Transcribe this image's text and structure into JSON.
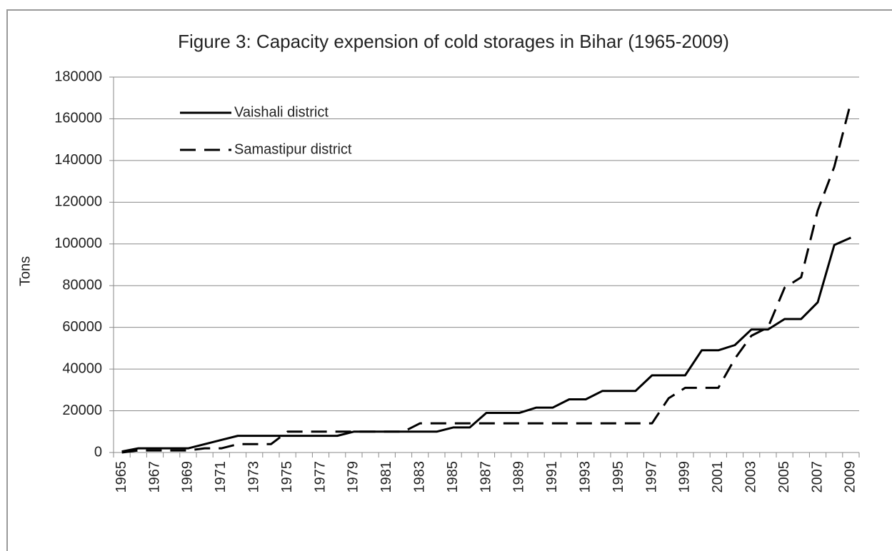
{
  "chart_data": {
    "type": "line",
    "title": "Figure 3: Capacity expension of cold storages in Bihar (1965-2009)",
    "ylabel": "Tons",
    "categories": [
      "1965",
      null,
      "1967",
      null,
      "1969",
      null,
      "1971",
      null,
      "1973",
      null,
      "1975",
      null,
      "1977",
      null,
      "1979",
      null,
      "1981",
      null,
      "1983",
      null,
      "1985",
      null,
      "1987",
      null,
      "1989",
      null,
      "1991",
      null,
      "1993",
      null,
      "1995",
      null,
      "1997",
      null,
      "1999",
      null,
      "2001",
      null,
      "2003",
      null,
      "2005",
      null,
      "2007",
      null,
      "2009"
    ],
    "series": [
      {
        "name": "Vaishali district",
        "color": "#000000",
        "dash": "solid",
        "values": [
          500,
          2000,
          2000,
          2000,
          2000,
          4000,
          6000,
          8000,
          8000,
          8000,
          8000,
          8000,
          8000,
          8000,
          10000,
          10000,
          10000,
          10000,
          10000,
          10000,
          12000,
          12000,
          19000,
          19000,
          19000,
          21500,
          21500,
          25500,
          25500,
          29500,
          29500,
          29500,
          37000,
          37000,
          37000,
          49000,
          49000,
          51500,
          59000,
          59000,
          64000,
          64000,
          72000,
          99500,
          103000
        ]
      },
      {
        "name": "Samastipur district",
        "color": "#000000",
        "dash": "dashed",
        "values": [
          0,
          1000,
          1000,
          1000,
          1000,
          2000,
          2000,
          4000,
          4000,
          4000,
          10000,
          10000,
          10000,
          10000,
          10000,
          10000,
          10000,
          10000,
          14000,
          14000,
          14000,
          14000,
          14000,
          14000,
          14000,
          14000,
          14000,
          14000,
          14000,
          14000,
          14000,
          14000,
          14000,
          26000,
          31000,
          31000,
          31000,
          45000,
          56000,
          60000,
          79000,
          84000,
          116000,
          137000,
          168000
        ]
      }
    ],
    "ylim": [
      0,
      180000
    ],
    "yticks": [
      0,
      20000,
      40000,
      60000,
      80000,
      100000,
      120000,
      140000,
      160000,
      180000
    ],
    "grid": true,
    "legend": "upper left"
  }
}
